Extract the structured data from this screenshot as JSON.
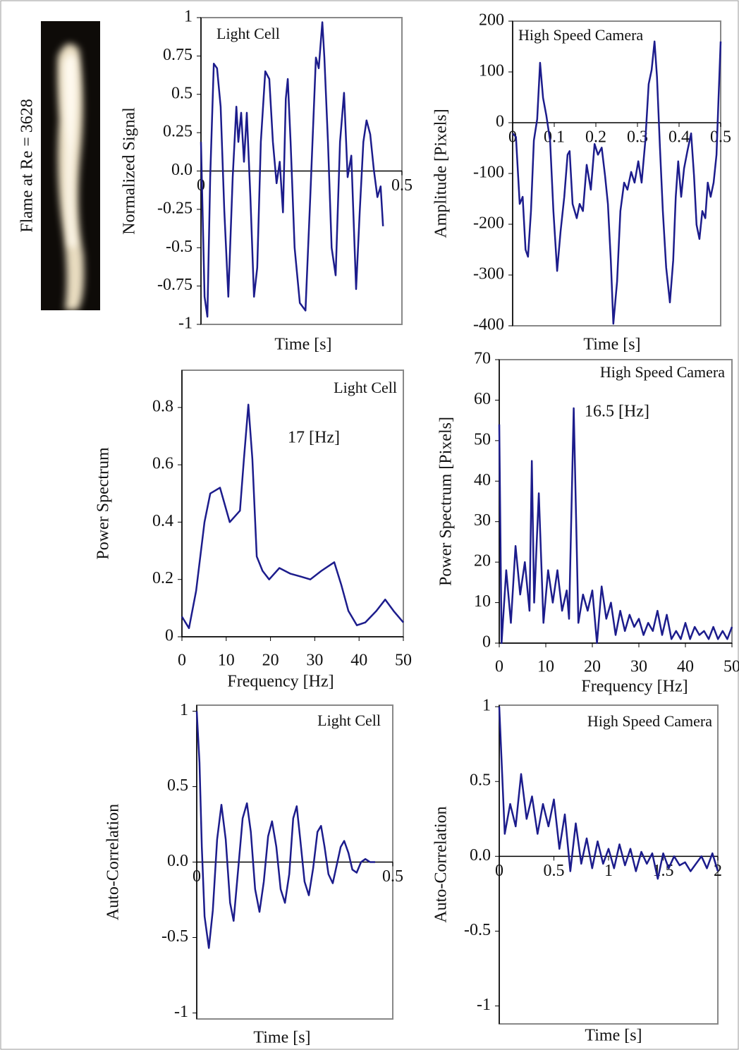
{
  "figure_label": "Flame at Re = 3628",
  "chart_data": [
    {
      "type": "line",
      "title": "Light Cell",
      "xlabel": "Time [s]",
      "ylabel": "Normalized Signal",
      "color": "#1c1c8c",
      "xlim": [
        0,
        0.5
      ],
      "xticks": [
        0,
        0.5
      ],
      "ylim": [
        -1,
        1
      ],
      "yticks": [
        -1,
        -0.75,
        -0.5,
        -0.25,
        {
          "value": 0,
          "label": "0.0"
        },
        0.25,
        0.5,
        0.75,
        1
      ],
      "x": [
        0,
        0.009,
        0.016,
        0.023,
        0.032,
        0.04,
        0.049,
        0.058,
        0.068,
        0.079,
        0.088,
        0.093,
        0.1,
        0.107,
        0.114,
        0.123,
        0.132,
        0.14,
        0.149,
        0.16,
        0.17,
        0.179,
        0.188,
        0.196,
        0.204,
        0.211,
        0.216,
        0.223,
        0.233,
        0.246,
        0.26,
        0.272,
        0.286,
        0.293,
        0.302,
        0.307,
        0.316,
        0.325,
        0.335,
        0.346,
        0.356,
        0.365,
        0.374,
        0.386,
        0.395,
        0.404,
        0.412,
        0.421,
        0.43,
        0.439,
        0.447,
        0.453
      ],
      "values": [
        0.19,
        -0.82,
        -0.95,
        -0.04,
        0.7,
        0.67,
        0.42,
        -0.26,
        -0.82,
        -0.04,
        0.42,
        0.19,
        0.38,
        0.06,
        0.38,
        -0.17,
        -0.82,
        -0.63,
        0.19,
        0.65,
        0.6,
        0.19,
        -0.08,
        0.06,
        -0.27,
        0.47,
        0.6,
        0.19,
        -0.5,
        -0.86,
        -0.91,
        -0.17,
        0.74,
        0.67,
        0.97,
        0.74,
        0.19,
        -0.5,
        -0.68,
        0.19,
        0.51,
        -0.04,
        0.1,
        -0.77,
        -0.27,
        0.19,
        0.33,
        0.24,
        0.01,
        -0.17,
        -0.1,
        -0.36
      ]
    },
    {
      "type": "line",
      "title": "High Speed Camera",
      "xlabel": "Time [s]",
      "ylabel": "Amplitude [Pixels]",
      "color": "#1c1c8c",
      "xlim": [
        0,
        0.5
      ],
      "xticks": [
        0,
        0.1,
        0.2,
        0.3,
        0.4,
        0.5
      ],
      "ylim": [
        -400,
        200
      ],
      "yticks": [
        -400,
        -300,
        -200,
        -100,
        0,
        100,
        200
      ],
      "x": [
        0,
        0.008,
        0.017,
        0.024,
        0.031,
        0.037,
        0.044,
        0.051,
        0.059,
        0.066,
        0.073,
        0.081,
        0.09,
        0.098,
        0.107,
        0.115,
        0.124,
        0.132,
        0.137,
        0.144,
        0.154,
        0.161,
        0.169,
        0.178,
        0.188,
        0.197,
        0.205,
        0.214,
        0.222,
        0.229,
        0.236,
        0.242,
        0.251,
        0.259,
        0.268,
        0.276,
        0.285,
        0.293,
        0.302,
        0.31,
        0.319,
        0.327,
        0.334,
        0.341,
        0.347,
        0.354,
        0.361,
        0.369,
        0.378,
        0.386,
        0.392,
        0.398,
        0.405,
        0.412,
        0.42,
        0.429,
        0.436,
        0.442,
        0.449,
        0.456,
        0.463,
        0.469,
        0.476,
        0.483,
        0.49,
        0.495,
        0.5
      ],
      "values": [
        -21,
        -28,
        -160,
        -146,
        -250,
        -264,
        -174,
        -35,
        7,
        118,
        49,
        14,
        -35,
        -174,
        -292,
        -215,
        -146,
        -63,
        -56,
        -160,
        -188,
        -160,
        -174,
        -83,
        -132,
        -42,
        -63,
        -49,
        -104,
        -160,
        -271,
        -396,
        -313,
        -174,
        -118,
        -132,
        -97,
        -118,
        -76,
        -118,
        -35,
        76,
        104,
        160,
        90,
        -49,
        -174,
        -285,
        -354,
        -271,
        -146,
        -76,
        -146,
        -90,
        -56,
        -21,
        -104,
        -201,
        -229,
        -174,
        -188,
        -118,
        -146,
        -118,
        -63,
        49,
        160
      ]
    },
    {
      "type": "line",
      "title": "Light Cell",
      "xlabel": "Frequency [Hz]",
      "ylabel": "Power Spectrum",
      "annotation": "17 [Hz]",
      "color": "#1c1c8c",
      "xlim": [
        0,
        50
      ],
      "xticks": [
        0,
        10,
        20,
        30,
        40,
        50
      ],
      "ylim": [
        0,
        0.93
      ],
      "yticks": [
        0,
        0.2,
        0.4,
        0.6,
        0.8
      ],
      "x": [
        0,
        1.6,
        3.2,
        5.1,
        6.4,
        8.6,
        10.8,
        13.1,
        14.0,
        15.0,
        15.9,
        16.9,
        18.2,
        19.7,
        22.0,
        24.5,
        26.8,
        29.0,
        31.5,
        34.4,
        36.0,
        37.6,
        39.5,
        41.4,
        43.9,
        45.9,
        47.8,
        50
      ],
      "values": [
        0.07,
        0.03,
        0.16,
        0.4,
        0.5,
        0.52,
        0.4,
        0.44,
        0.62,
        0.81,
        0.62,
        0.28,
        0.23,
        0.2,
        0.24,
        0.22,
        0.21,
        0.2,
        0.23,
        0.26,
        0.18,
        0.09,
        0.04,
        0.05,
        0.09,
        0.13,
        0.09,
        0.05
      ]
    },
    {
      "type": "line",
      "title": "High Speed Camera",
      "xlabel": "Frequency [Hz]",
      "ylabel": "Power Spectrum [Pixels]",
      "annotation": "16.5 [Hz]",
      "color": "#1c1c8c",
      "xlim": [
        0,
        50
      ],
      "xticks": [
        0,
        10,
        20,
        30,
        40,
        50
      ],
      "ylim": [
        0,
        70
      ],
      "yticks": [
        0,
        10,
        20,
        30,
        40,
        50,
        60,
        70
      ],
      "x": [
        0,
        0.5,
        1.5,
        2.5,
        3.5,
        4.5,
        5.5,
        6.5,
        7,
        7.5,
        8.5,
        9.5,
        10.5,
        11.5,
        12.5,
        13.5,
        14.5,
        15,
        16,
        17,
        18,
        19,
        20,
        21,
        22,
        23,
        24,
        25,
        26,
        27,
        28,
        29,
        30,
        31,
        32,
        33,
        34,
        35,
        36,
        37,
        38,
        39,
        40,
        41,
        42,
        43,
        44,
        45,
        46,
        47,
        48,
        49,
        50
      ],
      "values": [
        54,
        0,
        18,
        5,
        24,
        12,
        20,
        8,
        45,
        10,
        37,
        5,
        18,
        10,
        18,
        8,
        13,
        6,
        58,
        5,
        12,
        8,
        13,
        0,
        14,
        6,
        10,
        2,
        8,
        3,
        7,
        4,
        6,
        2,
        5,
        3,
        8,
        2,
        7,
        1,
        3,
        1,
        5,
        1,
        4,
        2,
        3,
        1,
        4,
        1,
        3,
        1,
        4
      ]
    },
    {
      "type": "line",
      "title": "Light Cell",
      "xlabel": "Time [s]",
      "ylabel": "Auto-Correlation",
      "color": "#1c1c8c",
      "xlim": [
        0,
        0.5
      ],
      "xticks": [
        0,
        0.5
      ],
      "ylim": [
        -1.04,
        1.04
      ],
      "yticks": [
        -1,
        -0.5,
        {
          "value": 0,
          "label": "0.0"
        },
        0.5,
        1
      ],
      "x": [
        0,
        0.007,
        0.013,
        0.02,
        0.031,
        0.041,
        0.052,
        0.063,
        0.074,
        0.085,
        0.094,
        0.106,
        0.117,
        0.128,
        0.138,
        0.149,
        0.16,
        0.171,
        0.182,
        0.192,
        0.203,
        0.214,
        0.225,
        0.236,
        0.246,
        0.255,
        0.264,
        0.275,
        0.286,
        0.297,
        0.308,
        0.317,
        0.326,
        0.336,
        0.347,
        0.358,
        0.367,
        0.376,
        0.387,
        0.397,
        0.408,
        0.419,
        0.43,
        0.442,
        0.455
      ],
      "values": [
        1.0,
        0.66,
        0.1,
        -0.36,
        -0.57,
        -0.32,
        0.15,
        0.38,
        0.15,
        -0.27,
        -0.39,
        -0.04,
        0.29,
        0.39,
        0.2,
        -0.18,
        -0.33,
        -0.13,
        0.17,
        0.27,
        0.1,
        -0.18,
        -0.27,
        -0.08,
        0.29,
        0.37,
        0.15,
        -0.13,
        -0.22,
        -0.04,
        0.2,
        0.24,
        0.1,
        -0.08,
        -0.14,
        -0.01,
        0.1,
        0.14,
        0.06,
        -0.05,
        -0.07,
        0,
        0.02,
        0,
        0
      ]
    },
    {
      "type": "line",
      "title": "High Speed Camera",
      "xlabel": "Time [s]",
      "ylabel": "Auto-Correlation",
      "color": "#1c1c8c",
      "xlim": [
        0,
        2
      ],
      "xticks": [
        0,
        0.5,
        1,
        1.5,
        2
      ],
      "ylim": [
        -1.12,
        1.01
      ],
      "yticks": [
        -1,
        -0.5,
        {
          "value": 0,
          "label": "0.0"
        },
        0.5,
        1
      ],
      "x": [
        0,
        0.05,
        0.1,
        0.15,
        0.2,
        0.25,
        0.3,
        0.35,
        0.4,
        0.45,
        0.5,
        0.55,
        0.6,
        0.65,
        0.7,
        0.75,
        0.8,
        0.85,
        0.9,
        0.95,
        1.0,
        1.05,
        1.1,
        1.15,
        1.2,
        1.25,
        1.3,
        1.35,
        1.4,
        1.45,
        1.5,
        1.55,
        1.6,
        1.65,
        1.7,
        1.75,
        1.8,
        1.85,
        1.9,
        1.95,
        2.0
      ],
      "values": [
        1.0,
        0.15,
        0.35,
        0.2,
        0.55,
        0.25,
        0.4,
        0.15,
        0.35,
        0.2,
        0.38,
        0.05,
        0.28,
        -0.1,
        0.22,
        -0.05,
        0.12,
        -0.08,
        0.1,
        -0.05,
        0.05,
        -0.08,
        0.08,
        -0.06,
        0.05,
        -0.1,
        0.03,
        -0.05,
        0.02,
        -0.15,
        0.02,
        -0.08,
        0,
        -0.06,
        -0.04,
        -0.1,
        -0.05,
        0,
        -0.08,
        0.02,
        -0.1
      ]
    }
  ]
}
